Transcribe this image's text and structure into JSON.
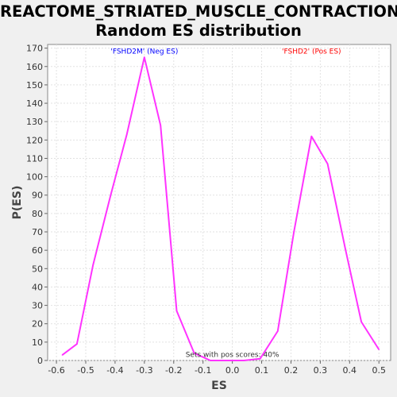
{
  "title_line1": "REACTOME_STRIATED_MUSCLE_CONTRACTION:",
  "title_line2": "Random ES distribution",
  "chart_data": {
    "type": "line",
    "title": "REACTOME_STRIATED_MUSCLE_CONTRACTION: Random ES distribution",
    "xlabel": "ES",
    "ylabel": "P(ES)",
    "xlim": [
      -0.63,
      0.54
    ],
    "ylim": [
      0,
      172
    ],
    "x_ticks": [
      -0.6,
      -0.5,
      -0.4,
      -0.3,
      -0.2,
      -0.1,
      0.0,
      0.1,
      0.2,
      0.3,
      0.4,
      0.5
    ],
    "x_tick_labels": [
      "-0.6",
      "-0.5",
      "-0.4",
      "-0.3",
      "-0.2",
      "-0.1",
      "0.0",
      "0.1",
      "0.2",
      "0.3",
      "0.4",
      "0.5"
    ],
    "y_ticks": [
      0,
      10,
      20,
      30,
      40,
      50,
      60,
      70,
      80,
      90,
      100,
      110,
      120,
      130,
      140,
      150,
      160,
      170
    ],
    "y_tick_labels": [
      "0",
      "10",
      "20",
      "30",
      "40",
      "50",
      "60",
      "70",
      "80",
      "90",
      "100",
      "110",
      "120",
      "130",
      "140",
      "150",
      "160",
      "170"
    ],
    "grid": true,
    "line_color": "#ff33ff",
    "series": [
      {
        "x": [
          -0.58,
          -0.53,
          -0.475,
          -0.415,
          -0.36,
          -0.3,
          -0.245,
          -0.19,
          -0.13,
          -0.075,
          -0.02,
          0.04,
          0.095,
          0.155,
          0.21,
          0.27,
          0.325,
          0.385,
          0.44,
          0.5
        ],
        "y": [
          3,
          9,
          52,
          90,
          123,
          165,
          128,
          27,
          4,
          0,
          0,
          0,
          1,
          16,
          70,
          122,
          107,
          61,
          21,
          6
        ]
      }
    ],
    "annotations": [
      {
        "text": "'FSHD2M' (Neg ES)",
        "x": -0.3,
        "y": 167,
        "color": "#0000ff"
      },
      {
        "text": "'FSHD2' (Pos ES)",
        "x": 0.27,
        "y": 167,
        "color": "#ff0000"
      },
      {
        "text": "Sets with pos scores: 40%",
        "x": 0.0,
        "y": 2,
        "color": "#333333"
      }
    ]
  }
}
